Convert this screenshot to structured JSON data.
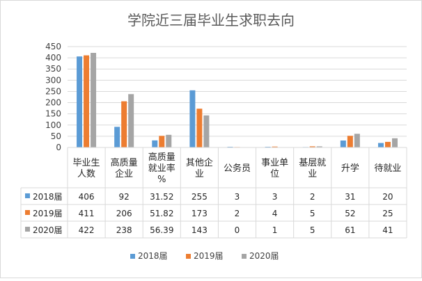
{
  "chart_data": {
    "type": "bar",
    "title": "学院近三届毕业生求职去向",
    "categories": [
      [
        "毕业生",
        "人数"
      ],
      [
        "高质量",
        "企业"
      ],
      [
        "高质量",
        "就业率",
        "%"
      ],
      [
        "其他企",
        "业"
      ],
      [
        "公务员"
      ],
      [
        "事业单",
        "位"
      ],
      [
        "基层就",
        "业"
      ],
      [
        "升学"
      ],
      [
        "待就业"
      ]
    ],
    "ylim": [
      0,
      450
    ],
    "yticks": [
      0,
      50,
      100,
      150,
      200,
      250,
      300,
      350,
      400,
      450
    ],
    "grid": true,
    "legend_position": "bottom",
    "data_table": true,
    "series": [
      {
        "name": "2018届",
        "color": "#5b9bd5",
        "values": [
          406,
          92,
          31.52,
          255,
          3,
          3,
          2,
          31,
          20
        ]
      },
      {
        "name": "2019届",
        "color": "#ed7d31",
        "values": [
          411,
          206,
          51.82,
          173,
          2,
          4,
          5,
          52,
          25
        ]
      },
      {
        "name": "2020届",
        "color": "#a5a5a5",
        "values": [
          422,
          238,
          56.39,
          143,
          0,
          1,
          5,
          61,
          41
        ]
      }
    ]
  }
}
